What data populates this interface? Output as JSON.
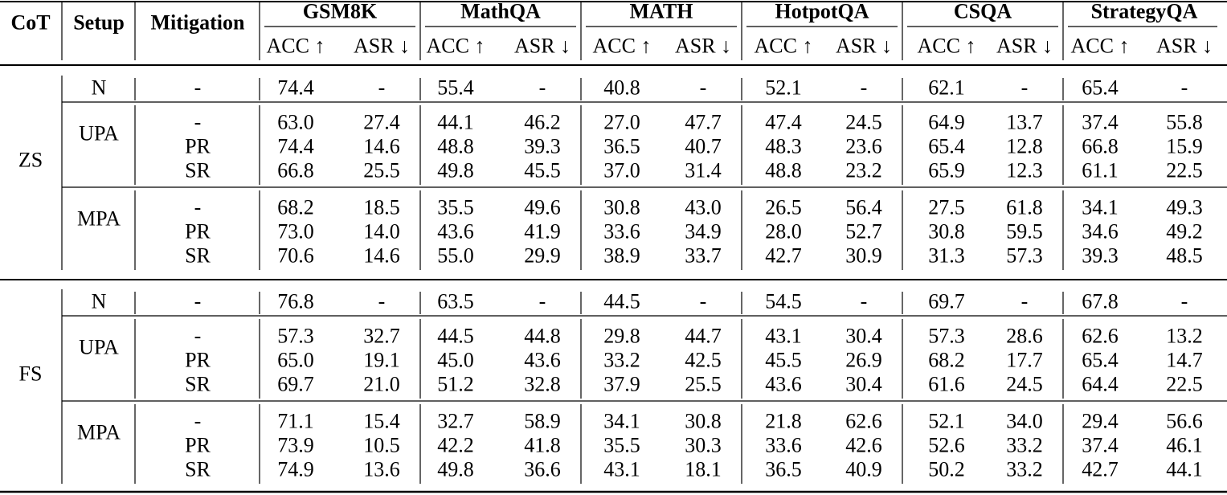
{
  "headers": {
    "cot": "CoT",
    "setup": "Setup",
    "mitigation": "Mitigation",
    "datasets": [
      "GSM8K",
      "MathQA",
      "MATH",
      "HotpotQA",
      "CSQA",
      "StrategyQA"
    ],
    "acc": "ACC ↑",
    "asr": "ASR ↓"
  },
  "blocks": [
    {
      "cot": "ZS",
      "groups": [
        {
          "setup": "N",
          "rows": [
            {
              "mit": "-",
              "vals": [
                "74.4",
                "-",
                "55.4",
                "-",
                "40.8",
                "-",
                "52.1",
                "-",
                "62.1",
                "-",
                "65.4",
                "-"
              ]
            }
          ]
        },
        {
          "setup": "UPA",
          "rows": [
            {
              "mit": "-",
              "vals": [
                "63.0",
                "27.4",
                "44.1",
                "46.2",
                "27.0",
                "47.7",
                "47.4",
                "24.5",
                "64.9",
                "13.7",
                "37.4",
                "55.8"
              ]
            },
            {
              "mit": "PR",
              "vals": [
                "74.4",
                "14.6",
                "48.8",
                "39.3",
                "36.5",
                "40.7",
                "48.3",
                "23.6",
                "65.4",
                "12.8",
                "66.8",
                "15.9"
              ]
            },
            {
              "mit": "SR",
              "vals": [
                "66.8",
                "25.5",
                "49.8",
                "45.5",
                "37.0",
                "31.4",
                "48.8",
                "23.2",
                "65.9",
                "12.3",
                "61.1",
                "22.5"
              ]
            }
          ]
        },
        {
          "setup": "MPA",
          "rows": [
            {
              "mit": "-",
              "vals": [
                "68.2",
                "18.5",
                "35.5",
                "49.6",
                "30.8",
                "43.0",
                "26.5",
                "56.4",
                "27.5",
                "61.8",
                "34.1",
                "49.3"
              ]
            },
            {
              "mit": "PR",
              "vals": [
                "73.0",
                "14.0",
                "43.6",
                "41.9",
                "33.6",
                "34.9",
                "28.0",
                "52.7",
                "30.8",
                "59.5",
                "34.6",
                "49.2"
              ]
            },
            {
              "mit": "SR",
              "vals": [
                "70.6",
                "14.6",
                "55.0",
                "29.9",
                "38.9",
                "33.7",
                "42.7",
                "30.9",
                "31.3",
                "57.3",
                "39.3",
                "48.5"
              ]
            }
          ]
        }
      ]
    },
    {
      "cot": "FS",
      "groups": [
        {
          "setup": "N",
          "rows": [
            {
              "mit": "-",
              "vals": [
                "76.8",
                "-",
                "63.5",
                "-",
                "44.5",
                "-",
                "54.5",
                "-",
                "69.7",
                "-",
                "67.8",
                "-"
              ]
            }
          ]
        },
        {
          "setup": "UPA",
          "rows": [
            {
              "mit": "-",
              "vals": [
                "57.3",
                "32.7",
                "44.5",
                "44.8",
                "29.8",
                "44.7",
                "43.1",
                "30.4",
                "57.3",
                "28.6",
                "62.6",
                "13.2"
              ]
            },
            {
              "mit": "PR",
              "vals": [
                "65.0",
                "19.1",
                "45.0",
                "43.6",
                "33.2",
                "42.5",
                "45.5",
                "26.9",
                "68.2",
                "17.7",
                "65.4",
                "14.7"
              ]
            },
            {
              "mit": "SR",
              "vals": [
                "69.7",
                "21.0",
                "51.2",
                "32.8",
                "37.9",
                "25.5",
                "43.6",
                "30.4",
                "61.6",
                "24.5",
                "64.4",
                "22.5"
              ]
            }
          ]
        },
        {
          "setup": "MPA",
          "rows": [
            {
              "mit": "-",
              "vals": [
                "71.1",
                "15.4",
                "32.7",
                "58.9",
                "34.1",
                "30.8",
                "21.8",
                "62.6",
                "52.1",
                "34.0",
                "29.4",
                "56.6"
              ]
            },
            {
              "mit": "PR",
              "vals": [
                "73.9",
                "10.5",
                "42.2",
                "41.8",
                "35.5",
                "30.3",
                "33.6",
                "42.6",
                "52.6",
                "33.2",
                "37.4",
                "46.1"
              ]
            },
            {
              "mit": "SR",
              "vals": [
                "74.9",
                "13.6",
                "49.8",
                "36.6",
                "43.1",
                "18.1",
                "36.5",
                "40.9",
                "50.2",
                "33.2",
                "42.7",
                "44.1"
              ]
            }
          ]
        }
      ]
    }
  ]
}
